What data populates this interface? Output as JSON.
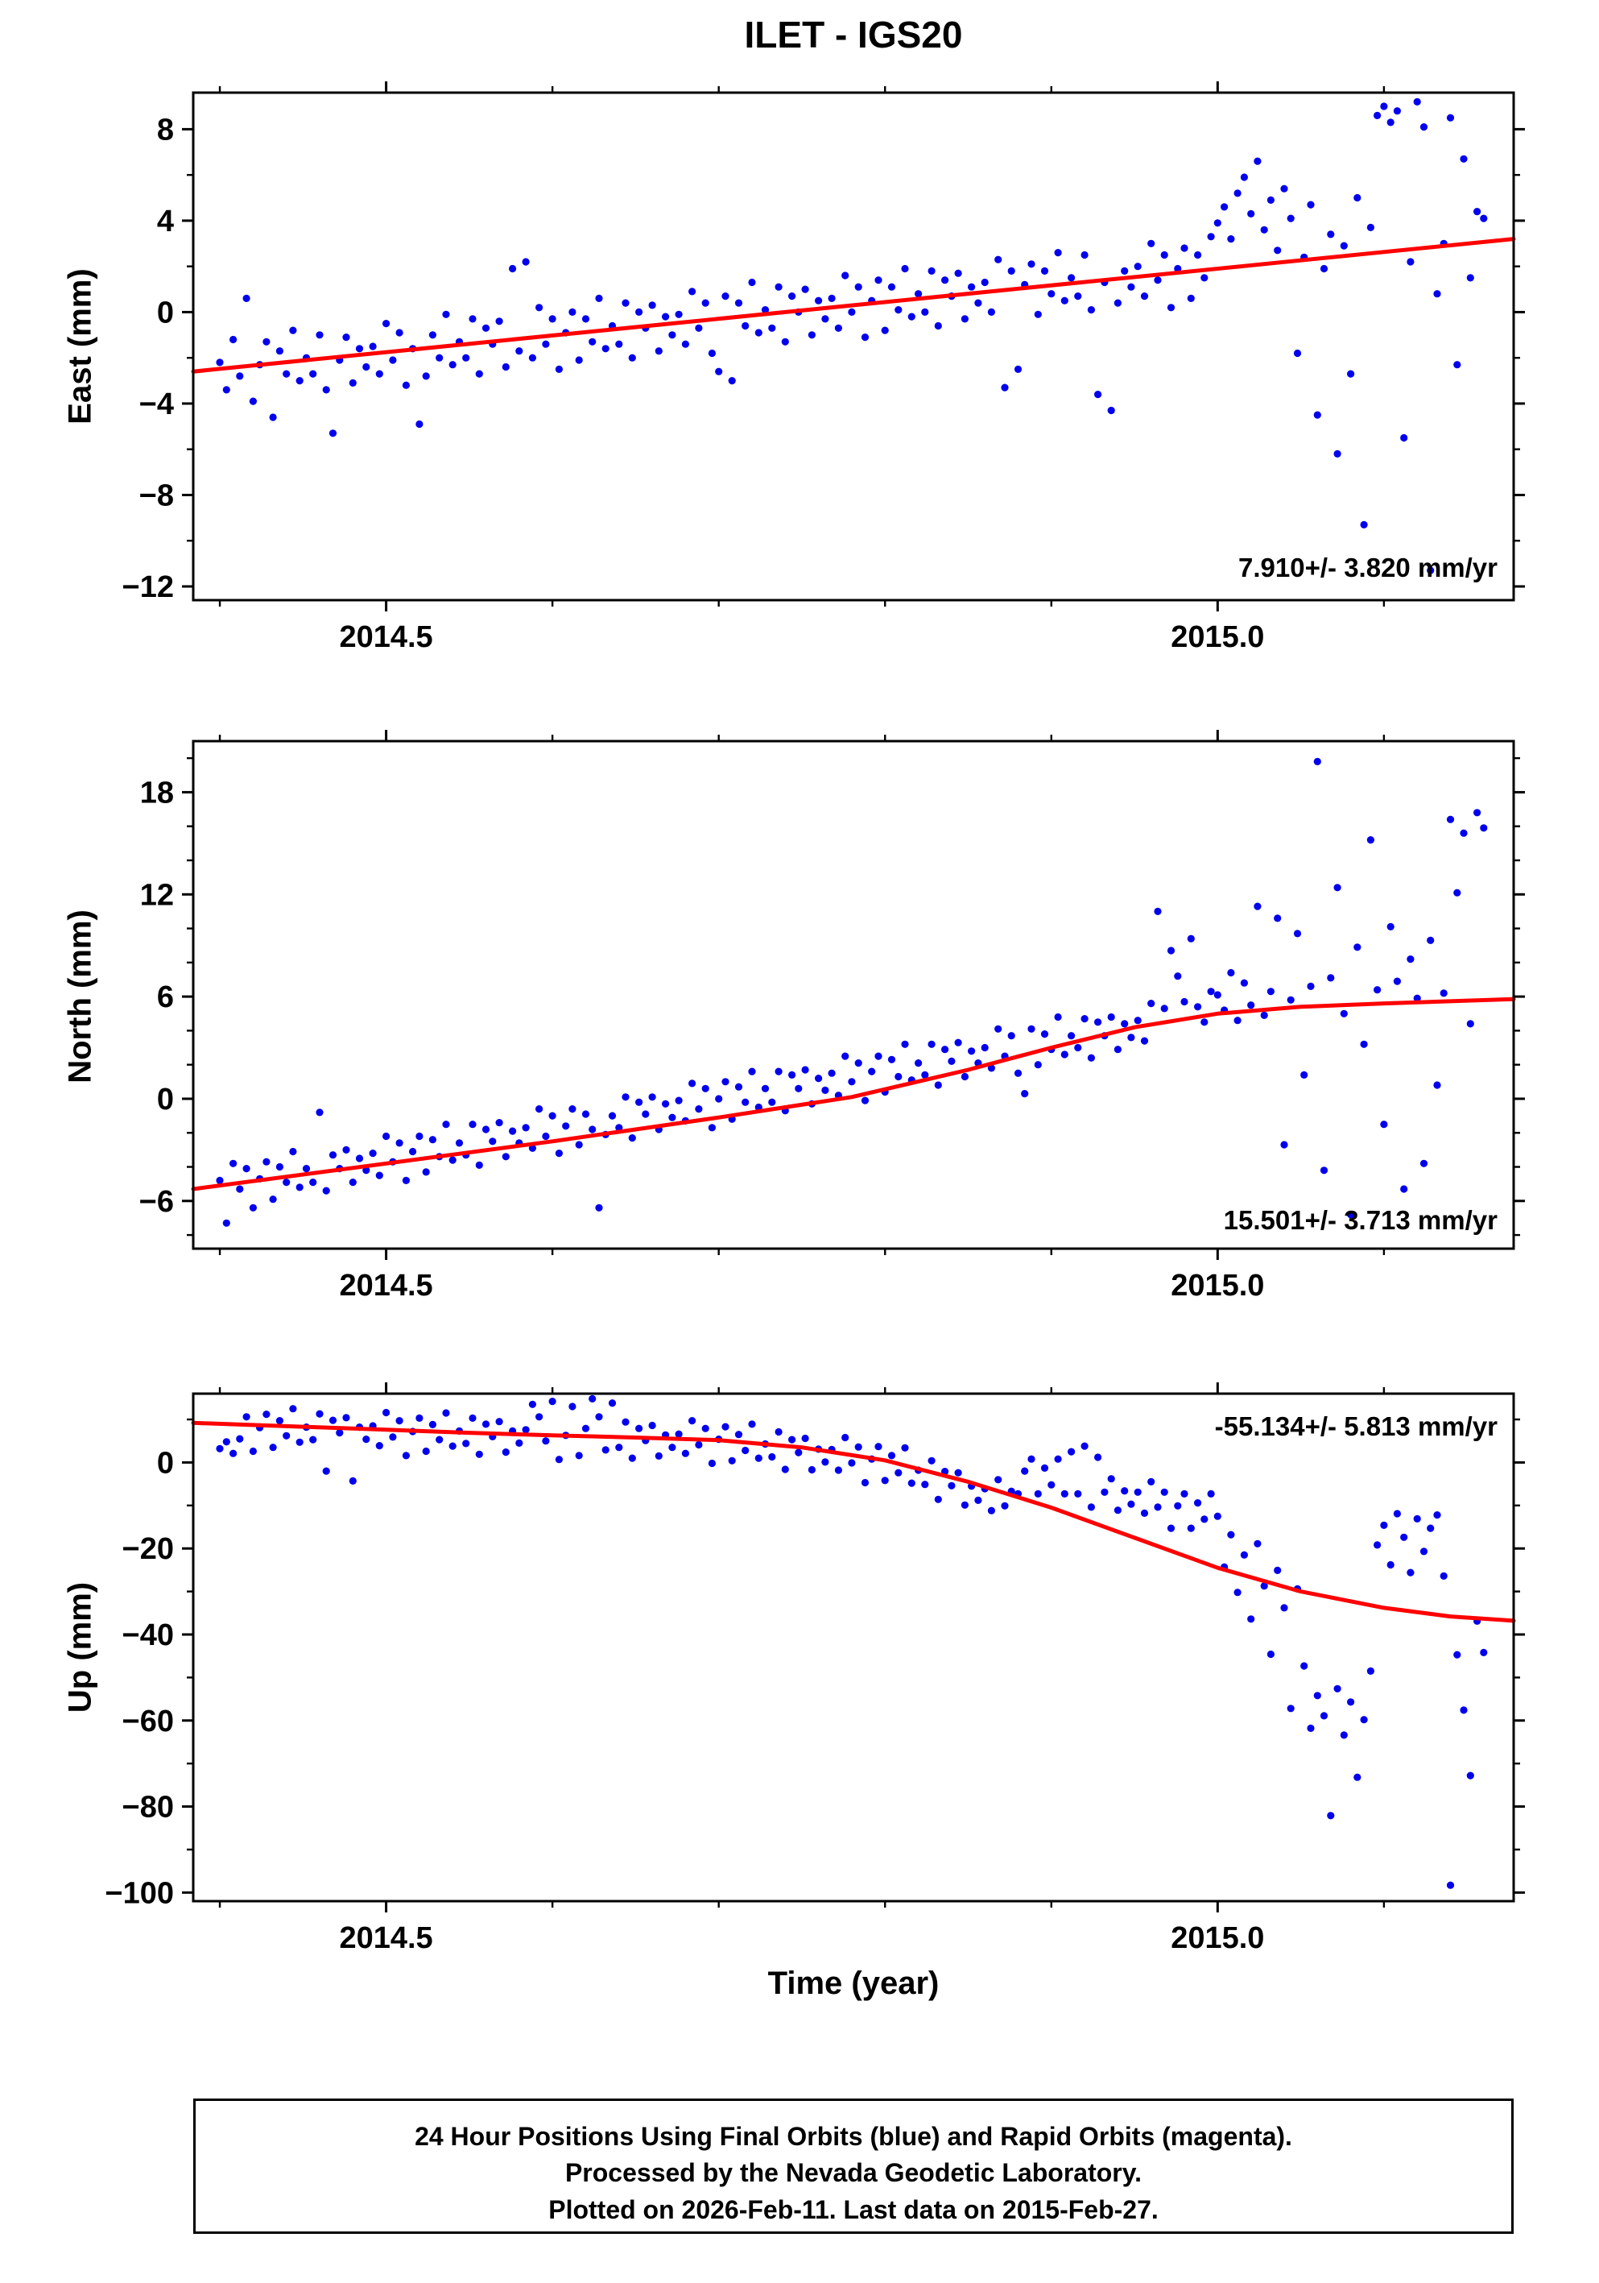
{
  "title": "ILET - IGS20",
  "xlabel": "Time (year)",
  "caption": {
    "line1": "24 Hour Positions Using Final Orbits (blue) and Rapid Orbits (magenta).",
    "line2": "Processed by the Nevada Geodetic Laboratory.",
    "line3": "Plotted on 2026-Feb-11. Last data on 2015-Feb-27."
  },
  "colors": {
    "points": "#0000ee",
    "trend": "#ff0000",
    "frame": "#000000"
  },
  "chart_data": [
    {
      "type": "scatter",
      "name": "east",
      "ylabel": "East (mm)",
      "rate_label": "7.910+/- 3.820 mm/yr",
      "rate_label_pos": "bottom-right",
      "xlim": [
        2014.384,
        2015.178
      ],
      "ylim": [
        -12.6,
        9.6
      ],
      "xticks": [
        2014.5,
        2015.0
      ],
      "xtick_labels": [
        "2014.5",
        "2015.0"
      ],
      "yticks": [
        -12,
        -8,
        -4,
        0,
        4,
        8
      ],
      "minor_x_step": 0.1,
      "minor_y_step": 2,
      "grid": false,
      "t_start": 2014.4,
      "t_step": 0.004,
      "values": [
        -2.2,
        -3.4,
        -1.2,
        -2.8,
        0.6,
        -3.9,
        -2.3,
        -1.3,
        -4.6,
        -1.7,
        -2.7,
        -0.8,
        -3.0,
        -2.0,
        -2.7,
        -1.0,
        -3.4,
        -5.3,
        -2.1,
        -1.1,
        -3.1,
        -1.6,
        -2.4,
        -1.5,
        -2.7,
        -0.5,
        -2.1,
        -0.9,
        -3.2,
        -1.6,
        -4.9,
        -2.8,
        -1.0,
        -2.0,
        -0.1,
        -2.3,
        -1.3,
        -2.0,
        -0.3,
        -2.7,
        -0.7,
        -1.4,
        -0.4,
        -2.4,
        1.9,
        -1.7,
        2.2,
        -2.0,
        0.2,
        -1.4,
        -0.3,
        -2.5,
        -0.9,
        0.0,
        -2.1,
        -0.3,
        -1.3,
        0.6,
        -1.6,
        -0.6,
        -1.4,
        0.4,
        -2.0,
        0.0,
        -0.7,
        0.3,
        -1.7,
        -0.2,
        -1.0,
        -0.1,
        -1.4,
        0.9,
        -0.7,
        0.4,
        -1.8,
        -2.6,
        0.7,
        -3.0,
        0.4,
        -0.6,
        1.3,
        -0.9,
        0.1,
        -0.7,
        1.1,
        -1.3,
        0.7,
        0.0,
        1.0,
        -1.0,
        0.5,
        -0.3,
        0.6,
        -0.7,
        1.6,
        0.0,
        1.1,
        -1.1,
        0.5,
        1.4,
        -0.8,
        1.1,
        0.1,
        1.9,
        -0.2,
        0.8,
        0.0,
        1.8,
        -0.6,
        1.4,
        0.7,
        1.7,
        -0.3,
        1.1,
        0.4,
        1.3,
        0.0,
        2.3,
        -3.3,
        1.8,
        -2.5,
        1.2,
        2.1,
        -0.1,
        1.8,
        0.8,
        2.6,
        0.5,
        1.5,
        0.7,
        2.5,
        0.1,
        -3.6,
        1.3,
        -4.3,
        0.4,
        1.8,
        1.1,
        2.0,
        0.7,
        3.0,
        1.4,
        2.5,
        0.2,
        1.9,
        2.8,
        0.6,
        2.5,
        1.5,
        3.3,
        3.9,
        4.6,
        3.2,
        5.2,
        5.9,
        4.3,
        6.6,
        3.6,
        4.9,
        2.7,
        5.4,
        4.1,
        -1.8,
        2.4,
        4.7,
        -4.5,
        1.9,
        3.4,
        -6.2,
        2.9,
        -2.7,
        5.0,
        -9.3,
        3.7,
        8.6,
        9.0,
        8.3,
        8.8,
        -5.5,
        2.2,
        9.2,
        8.1,
        -11.3,
        0.8,
        3.0,
        8.5,
        -2.3,
        6.7,
        1.5,
        4.4,
        4.1
      ],
      "trend": [
        [
          2014.384,
          -2.6
        ],
        [
          2015.178,
          3.2
        ]
      ]
    },
    {
      "type": "scatter",
      "name": "north",
      "ylabel": "North (mm)",
      "rate_label": "15.501+/- 3.713 mm/yr",
      "rate_label_pos": "bottom-right",
      "xlim": [
        2014.384,
        2015.178
      ],
      "ylim": [
        -8.8,
        21.0
      ],
      "xticks": [
        2014.5,
        2015.0
      ],
      "xtick_labels": [
        "2014.5",
        "2015.0"
      ],
      "yticks": [
        -6,
        0,
        6,
        12,
        18
      ],
      "minor_x_step": 0.1,
      "minor_y_step": 2,
      "grid": false,
      "t_start": 2014.4,
      "t_step": 0.004,
      "values": [
        -4.8,
        -7.3,
        -3.8,
        -5.3,
        -4.1,
        -6.4,
        -4.7,
        -3.7,
        -5.9,
        -4.0,
        -4.9,
        -3.1,
        -5.2,
        -4.1,
        -4.9,
        -0.8,
        -5.4,
        -3.3,
        -4.1,
        -3.0,
        -4.9,
        -3.5,
        -4.2,
        -3.2,
        -4.5,
        -2.2,
        -3.7,
        -2.6,
        -4.8,
        -3.1,
        -2.2,
        -4.3,
        -2.4,
        -3.4,
        -1.5,
        -3.6,
        -2.6,
        -3.3,
        -1.5,
        -3.9,
        -1.8,
        -2.5,
        -1.4,
        -3.4,
        -1.9,
        -2.6,
        -1.7,
        -2.9,
        -0.6,
        -2.2,
        -1.0,
        -3.2,
        -1.6,
        -0.6,
        -2.7,
        -0.9,
        -1.8,
        -6.4,
        -2.1,
        -1.0,
        -1.7,
        0.1,
        -2.3,
        -0.2,
        -0.9,
        0.1,
        -1.8,
        -0.3,
        -1.1,
        -0.1,
        -1.3,
        0.9,
        -0.6,
        0.6,
        -1.7,
        0.0,
        1.0,
        -1.2,
        0.7,
        -0.2,
        1.6,
        -0.5,
        0.6,
        -0.2,
        1.6,
        -0.7,
        1.4,
        0.6,
        1.7,
        -0.3,
        1.2,
        0.5,
        1.5,
        0.2,
        2.5,
        1.0,
        2.1,
        -0.1,
        1.6,
        2.5,
        0.4,
        2.3,
        1.3,
        3.2,
        1.1,
        2.1,
        1.4,
        3.2,
        0.8,
        2.9,
        2.2,
        3.3,
        1.3,
        2.8,
        2.1,
        3.0,
        1.8,
        4.1,
        2.5,
        3.7,
        1.5,
        0.3,
        4.1,
        2.0,
        3.8,
        2.9,
        4.8,
        2.6,
        3.7,
        3.0,
        4.7,
        2.4,
        4.5,
        3.7,
        4.8,
        2.9,
        4.4,
        3.6,
        4.6,
        3.4,
        5.6,
        11.0,
        5.3,
        8.7,
        7.2,
        5.7,
        9.4,
        5.4,
        4.5,
        6.3,
        6.1,
        5.2,
        7.4,
        4.6,
        6.8,
        5.5,
        11.3,
        4.9,
        6.3,
        10.6,
        -2.7,
        5.8,
        9.7,
        1.4,
        6.6,
        19.8,
        -4.2,
        7.1,
        12.4,
        5.0,
        -6.8,
        8.9,
        3.2,
        15.2,
        6.4,
        -1.5,
        10.1,
        6.9,
        -5.3,
        8.2,
        5.9,
        -3.8,
        9.3,
        0.8,
        6.2,
        16.4,
        12.1,
        15.6,
        4.4,
        16.8,
        15.9
      ],
      "trend": [
        [
          2014.384,
          -5.3
        ],
        [
          2014.5,
          -3.8
        ],
        [
          2014.6,
          -2.5
        ],
        [
          2014.7,
          -1.1
        ],
        [
          2014.78,
          0.1
        ],
        [
          2014.85,
          1.7
        ],
        [
          2014.9,
          3.0
        ],
        [
          2014.95,
          4.2
        ],
        [
          2015.0,
          5.0
        ],
        [
          2015.05,
          5.4
        ],
        [
          2015.1,
          5.6
        ],
        [
          2015.178,
          5.85
        ]
      ]
    },
    {
      "type": "scatter",
      "name": "up",
      "ylabel": "Up (mm)",
      "rate_label": "-55.134+/- 5.813 mm/yr",
      "rate_label_pos": "top-right",
      "xlim": [
        2014.384,
        2015.178
      ],
      "ylim": [
        -102,
        16
      ],
      "xticks": [
        2014.5,
        2015.0
      ],
      "xtick_labels": [
        "2014.5",
        "2015.0"
      ],
      "yticks": [
        0,
        -20,
        -40,
        -60,
        -80,
        -100
      ],
      "minor_x_step": 0.1,
      "minor_y_step": 10,
      "grid": false,
      "t_start": 2014.4,
      "t_step": 0.004,
      "values": [
        3.2,
        4.8,
        2.1,
        5.5,
        10.6,
        2.6,
        8.1,
        11.2,
        3.5,
        9.7,
        6.2,
        12.5,
        4.7,
        8.2,
        5.3,
        11.3,
        -2.0,
        9.8,
        6.9,
        10.4,
        -4.3,
        8.2,
        5.4,
        8.5,
        3.9,
        11.6,
        5.9,
        9.7,
        1.6,
        7.2,
        10.3,
        2.6,
        8.8,
        5.3,
        11.5,
        3.8,
        7.3,
        4.4,
        10.3,
        1.9,
        8.9,
        6.0,
        9.5,
        2.4,
        7.3,
        4.5,
        7.6,
        13.5,
        10.6,
        5.0,
        14.2,
        0.7,
        6.3,
        13.0,
        1.6,
        7.9,
        14.8,
        10.6,
        2.9,
        13.8,
        3.5,
        9.4,
        1.0,
        7.9,
        5.1,
        8.6,
        1.5,
        6.4,
        3.5,
        6.6,
        2.1,
        9.7,
        4.1,
        7.9,
        -0.2,
        5.4,
        8.3,
        0.4,
        6.5,
        2.8,
        8.9,
        1.0,
        4.3,
        1.3,
        7.1,
        -1.6,
        5.3,
        2.3,
        5.6,
        -1.7,
        3.1,
        0.1,
        3.0,
        -1.8,
        5.8,
        -0.1,
        3.6,
        -4.7,
        0.8,
        3.7,
        -4.2,
        1.6,
        -2.4,
        3.4,
        -4.8,
        -1.8,
        -5.1,
        0.4,
        -8.6,
        -2.1,
        -5.4,
        -2.4,
        -9.9,
        -5.5,
        -8.8,
        -6.1,
        -11.2,
        -4.0,
        -10.1,
        -6.7,
        -7.3,
        -2.0,
        0.8,
        -7.3,
        -1.3,
        -5.2,
        0.8,
        -7.3,
        2.5,
        -7.3,
        3.8,
        -10.4,
        1.2,
        -6.9,
        -3.8,
        -11.1,
        -6.6,
        -9.7,
        -6.9,
        -11.8,
        -4.5,
        -10.4,
        -6.9,
        -15.3,
        -10.1,
        -7.3,
        -15.3,
        -9.4,
        -13.2,
        -7.3,
        -12.5,
        -24.3,
        -16.8,
        -30.2,
        -21.5,
        -36.4,
        -18.9,
        -28.7,
        -44.6,
        -25.1,
        -33.8,
        -57.2,
        -29.4,
        -47.3,
        -61.8,
        -54.2,
        -58.9,
        -82.1,
        -52.6,
        -63.4,
        -55.7,
        -73.2,
        -59.8,
        -48.5,
        -19.2,
        -14.6,
        -23.8,
        -11.9,
        -17.4,
        -25.6,
        -13.1,
        -20.7,
        -15.3,
        -12.2,
        -26.4,
        -98.3,
        -44.7,
        -57.6,
        -72.8,
        -36.9,
        -44.2
      ],
      "trend": [
        [
          2014.384,
          9.2
        ],
        [
          2014.45,
          8.3
        ],
        [
          2014.5,
          7.6
        ],
        [
          2014.55,
          6.9
        ],
        [
          2014.6,
          6.3
        ],
        [
          2014.65,
          5.8
        ],
        [
          2014.7,
          5.2
        ],
        [
          2014.75,
          3.5
        ],
        [
          2014.8,
          0.5
        ],
        [
          2014.85,
          -4.5
        ],
        [
          2014.9,
          -10.5
        ],
        [
          2014.95,
          -17.5
        ],
        [
          2015.0,
          -24.5
        ],
        [
          2015.05,
          -30.0
        ],
        [
          2015.1,
          -33.8
        ],
        [
          2015.14,
          -35.8
        ],
        [
          2015.178,
          -36.8
        ]
      ]
    }
  ]
}
